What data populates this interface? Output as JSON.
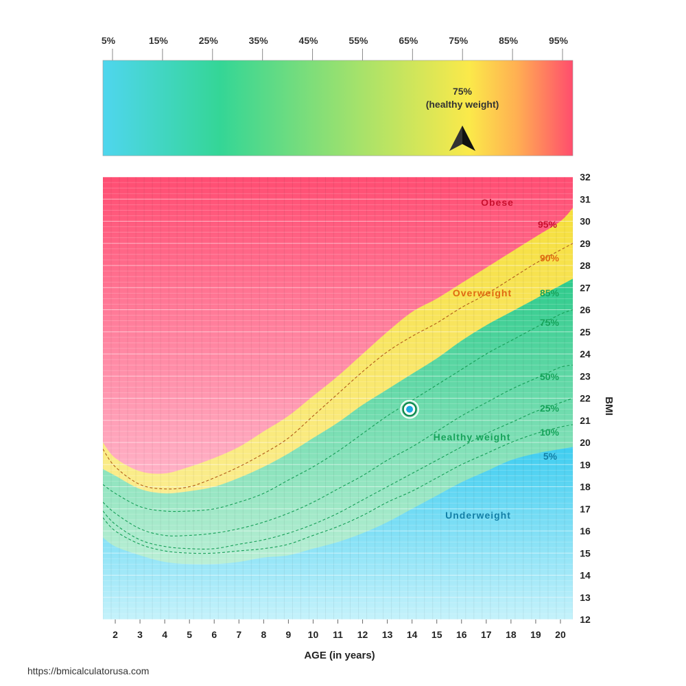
{
  "colors": {
    "obese": "#ff4d6d",
    "overweight": "#f9e04a",
    "healthy": "#34cc8f",
    "underweight": "#4fd0ee",
    "marker": "#1aa7e0",
    "marker_ring": "#0f8a4f"
  },
  "percentile_scale": {
    "ticks": [
      "5%",
      "15%",
      "25%",
      "35%",
      "45%",
      "55%",
      "65%",
      "75%",
      "85%",
      "95%"
    ],
    "pointer_value": 75,
    "pointer_label_line1": "75%",
    "pointer_label_line2": "(healthy weight)",
    "pointer_icon": "arrow-up-icon"
  },
  "chart_data": {
    "type": "area",
    "xlabel": "AGE (in years)",
    "ylabel": "BMI",
    "xlim": [
      1.5,
      20.5
    ],
    "ylim": [
      12,
      32
    ],
    "x_ticks": [
      2,
      3,
      4,
      5,
      6,
      7,
      8,
      9,
      10,
      11,
      12,
      13,
      14,
      15,
      16,
      17,
      18,
      19,
      20
    ],
    "y_ticks": [
      12,
      13,
      14,
      15,
      16,
      17,
      18,
      19,
      20,
      21,
      22,
      23,
      24,
      25,
      26,
      27,
      28,
      29,
      30,
      31,
      32
    ],
    "age": [
      1.5,
      2,
      3,
      4,
      5,
      6,
      7,
      8,
      9,
      10,
      11,
      12,
      13,
      14,
      15,
      16,
      17,
      18,
      19,
      20,
      20.5
    ],
    "series": [
      {
        "name": "95%",
        "role": "boundary",
        "values": [
          20.0,
          19.3,
          18.7,
          18.6,
          18.9,
          19.3,
          19.8,
          20.5,
          21.2,
          22.1,
          23.0,
          24.0,
          25.0,
          25.9,
          26.5,
          27.2,
          27.9,
          28.6,
          29.3,
          30.0,
          30.6
        ]
      },
      {
        "name": "90%",
        "role": "dashed",
        "values": [
          19.7,
          18.9,
          18.1,
          17.9,
          18.0,
          18.4,
          18.9,
          19.5,
          20.2,
          21.2,
          22.2,
          23.2,
          24.1,
          24.8,
          25.4,
          26.1,
          26.7,
          27.4,
          28.1,
          28.7,
          29.0
        ]
      },
      {
        "name": "85%",
        "role": "boundary",
        "values": [
          18.8,
          18.5,
          17.9,
          17.7,
          17.8,
          18.0,
          18.4,
          18.9,
          19.5,
          20.2,
          20.9,
          21.7,
          22.4,
          23.1,
          23.8,
          24.6,
          25.3,
          25.9,
          26.5,
          27.1,
          27.4
        ]
      },
      {
        "name": "75%",
        "role": "dashed",
        "values": [
          18.1,
          17.7,
          17.1,
          16.9,
          16.9,
          17.0,
          17.3,
          17.7,
          18.3,
          18.9,
          19.6,
          20.4,
          21.2,
          21.9,
          22.6,
          23.3,
          24.0,
          24.6,
          25.2,
          25.8,
          26.0
        ]
      },
      {
        "name": "50%",
        "role": "dashed",
        "values": [
          17.3,
          16.8,
          16.1,
          15.8,
          15.8,
          15.9,
          16.1,
          16.4,
          16.8,
          17.3,
          17.9,
          18.5,
          19.2,
          19.8,
          20.5,
          21.2,
          21.8,
          22.4,
          22.9,
          23.4,
          23.5
        ]
      },
      {
        "name": "25%",
        "role": "dashed",
        "values": [
          16.9,
          16.3,
          15.6,
          15.3,
          15.2,
          15.2,
          15.4,
          15.6,
          15.9,
          16.3,
          16.8,
          17.4,
          18.0,
          18.6,
          19.2,
          19.8,
          20.4,
          20.9,
          21.4,
          21.8,
          22.0
        ]
      },
      {
        "name": "10%",
        "role": "dashed",
        "values": [
          16.6,
          16.0,
          15.4,
          15.1,
          15.0,
          15.0,
          15.1,
          15.2,
          15.4,
          15.8,
          16.2,
          16.7,
          17.3,
          17.8,
          18.4,
          19.0,
          19.5,
          20.0,
          20.4,
          20.7,
          20.8
        ]
      },
      {
        "name": "5%",
        "role": "boundary",
        "values": [
          15.7,
          15.3,
          14.9,
          14.6,
          14.5,
          14.5,
          14.6,
          14.8,
          14.9,
          15.2,
          15.5,
          15.9,
          16.4,
          17.0,
          17.6,
          18.2,
          18.7,
          19.2,
          19.5,
          19.7,
          19.8
        ]
      }
    ],
    "zones": [
      {
        "name": "Obese",
        "color": "#c8102e"
      },
      {
        "name": "Overweight",
        "color": "#e06a10"
      },
      {
        "name": "Healthy weight",
        "color": "#16a35a"
      },
      {
        "name": "Underweight",
        "color": "#137fa6"
      }
    ],
    "curve_labels": [
      {
        "text": "95%",
        "color": "#c8102e"
      },
      {
        "text": "90%",
        "color": "#e06a10"
      },
      {
        "text": "85%",
        "color": "#16a35a"
      },
      {
        "text": "75%",
        "color": "#16a35a"
      },
      {
        "text": "50%",
        "color": "#16a35a"
      },
      {
        "text": "25%",
        "color": "#16a35a"
      },
      {
        "text": "10%",
        "color": "#16a35a"
      },
      {
        "text": "5%",
        "color": "#137fa6"
      }
    ],
    "point": {
      "age": 13.9,
      "bmi": 21.5
    }
  },
  "source_text": "https://bmicalculatorusa.com"
}
